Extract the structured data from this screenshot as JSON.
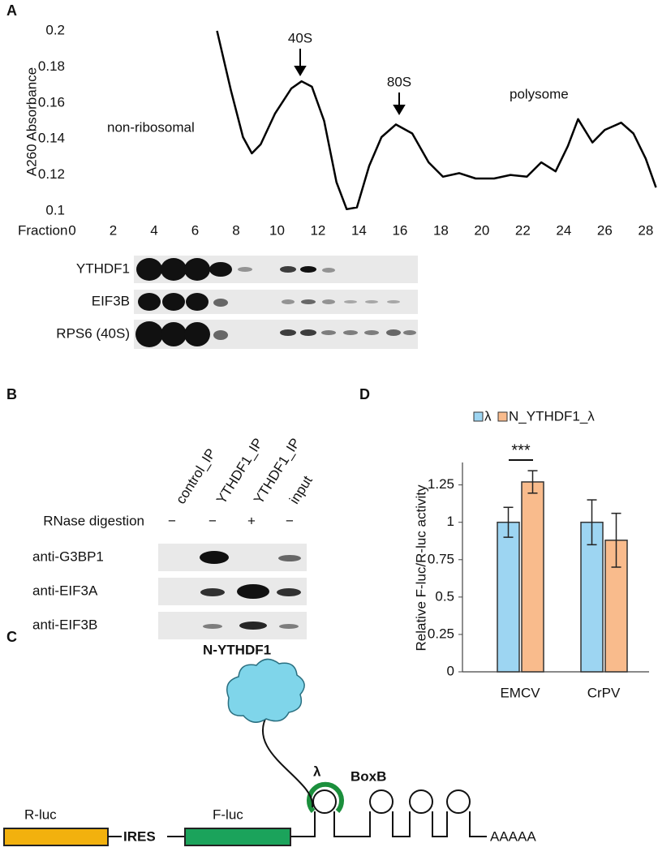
{
  "panel_labels": [
    "A",
    "B",
    "C",
    "D"
  ],
  "chart_data": [
    {
      "type": "line",
      "x_label": "Fraction",
      "y_label": "A260 Absorbance",
      "color": "#000000",
      "annotations": [
        "40S",
        "80S",
        "non-ribosomal",
        "polysome"
      ],
      "x": [
        7.07,
        7.75,
        8.34,
        8.77,
        9.2,
        9.9,
        10.7,
        11.2,
        11.7,
        12.3,
        12.9,
        13.4,
        13.9,
        14.5,
        15.1,
        15.8,
        16.6,
        17.4,
        18.1,
        18.9,
        19.7,
        20.6,
        21.4,
        22.2,
        22.9,
        23.6,
        24.2,
        24.7,
        25.4,
        26.0,
        26.8,
        27.4,
        28.0,
        28.5
      ],
      "values": [
        0.2,
        0.167,
        0.141,
        0.132,
        0.137,
        0.154,
        0.168,
        0.172,
        0.169,
        0.15,
        0.116,
        0.101,
        0.102,
        0.125,
        0.141,
        0.148,
        0.143,
        0.127,
        0.119,
        0.121,
        0.118,
        0.118,
        0.12,
        0.119,
        0.127,
        0.122,
        0.136,
        0.151,
        0.138,
        0.145,
        0.149,
        0.143,
        0.129,
        0.113
      ],
      "xlim": [
        0,
        28.6
      ],
      "xticks": [
        0,
        2,
        4,
        6,
        8,
        10,
        12,
        14,
        16,
        18,
        20,
        22,
        24,
        26,
        28
      ],
      "ylim": [
        0.1,
        0.2
      ],
      "yticks": [
        0.1,
        0.12,
        0.14,
        0.16,
        0.18,
        0.2
      ]
    },
    {
      "type": "bar",
      "y_label": "Relative F-luc/R-luc activity",
      "significance": "***",
      "categories": [
        "EMCV",
        "CrPV"
      ],
      "series": [
        {
          "name": "λ",
          "color": "#9dd5f2",
          "values": [
            1.0,
            1.0
          ],
          "errors": [
            0.1,
            0.15
          ]
        },
        {
          "name": "N_YTHDF1_λ",
          "color": "#f9bb8c",
          "values": [
            1.27,
            0.88
          ],
          "errors": [
            0.075,
            0.18
          ]
        }
      ],
      "ylim": [
        0,
        1.4
      ],
      "yticks": [
        0,
        0.25,
        0.5,
        0.75,
        1,
        1.25
      ]
    }
  ],
  "blot_a": {
    "rows": [
      "YTHDF1",
      "EIF3B",
      "RPS6 (40S)"
    ]
  },
  "blot_b": {
    "columns": [
      "control_IP",
      "YTHDF1_IP",
      "YTHDF1_IP",
      "input"
    ],
    "treatment": {
      "label": "RNase digestion",
      "marks": [
        "−",
        "−",
        "+",
        "−"
      ]
    },
    "rows": [
      "anti-G3BP1",
      "anti-EIF3A",
      "anti-EIF3B"
    ]
  },
  "diagram_c": {
    "protein": "N-YTHDF1",
    "lambda": "λ",
    "boxb": "BoxB",
    "rluc": "R-luc",
    "ires": "IRES",
    "fluc": "F-luc",
    "polya": "AAAAA"
  }
}
